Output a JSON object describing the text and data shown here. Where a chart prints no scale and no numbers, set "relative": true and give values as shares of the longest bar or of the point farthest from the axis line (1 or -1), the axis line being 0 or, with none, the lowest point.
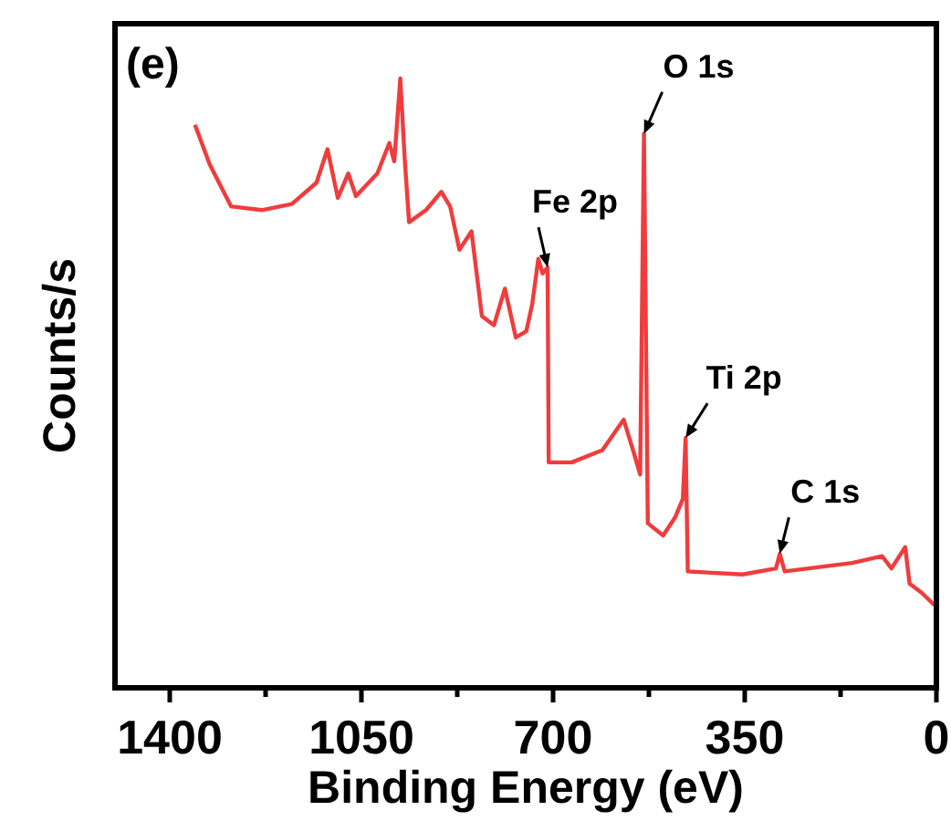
{
  "chart_data": {
    "type": "line",
    "xlabel": "Binding Energy (eV)",
    "ylabel": "Counts/s",
    "relative": true,
    "x": [
      1354,
      1327,
      1288,
      1232,
      1177,
      1132,
      1112,
      1093,
      1074,
      1060,
      1021,
      999,
      990,
      979,
      971,
      963,
      932,
      904,
      888,
      871,
      849,
      830,
      808,
      788,
      768,
      749,
      738,
      727,
      719,
      710,
      708,
      666,
      610,
      571,
      554,
      541,
      534,
      527,
      499,
      477,
      463,
      458,
      454,
      354,
      293,
      286,
      277,
      154,
      99,
      82,
      57,
      49,
      27,
      4
    ],
    "series": [
      {
        "color": "#f03c3c",
        "values": [
          0.924,
          0.859,
          0.79,
          0.784,
          0.794,
          0.829,
          0.884,
          0.804,
          0.844,
          0.807,
          0.844,
          0.894,
          0.864,
          1.0,
          0.869,
          0.764,
          0.784,
          0.814,
          0.79,
          0.719,
          0.749,
          0.61,
          0.595,
          0.655,
          0.575,
          0.585,
          0.63,
          0.704,
          0.68,
          0.69,
          0.37,
          0.37,
          0.39,
          0.44,
          0.39,
          0.35,
          0.909,
          0.27,
          0.25,
          0.28,
          0.31,
          0.41,
          0.191,
          0.186,
          0.196,
          0.22,
          0.191,
          0.205,
          0.216,
          0.196,
          0.231,
          0.171,
          0.156,
          0.136
        ]
      }
    ],
    "xlim": [
      1500,
      0
    ],
    "xticks": [
      1400,
      {
        "value": 1225,
        "label": null
      },
      1050,
      {
        "value": 875,
        "label": null
      },
      700,
      {
        "value": 525,
        "label": null
      },
      350,
      {
        "value": 175,
        "label": null
      },
      0
    ],
    "marker": "none",
    "line_style": "solid",
    "grid": false,
    "annotations": [
      "(e)",
      {
        "text": "O 1s",
        "x": 534,
        "y": 0.909
      },
      {
        "text": "Fe 2p",
        "x": 710,
        "y": 0.69
      },
      {
        "text": "Ti 2p",
        "x": 458,
        "y": 0.41
      },
      {
        "text": "C 1s",
        "x": 286,
        "y": 0.22
      }
    ]
  }
}
